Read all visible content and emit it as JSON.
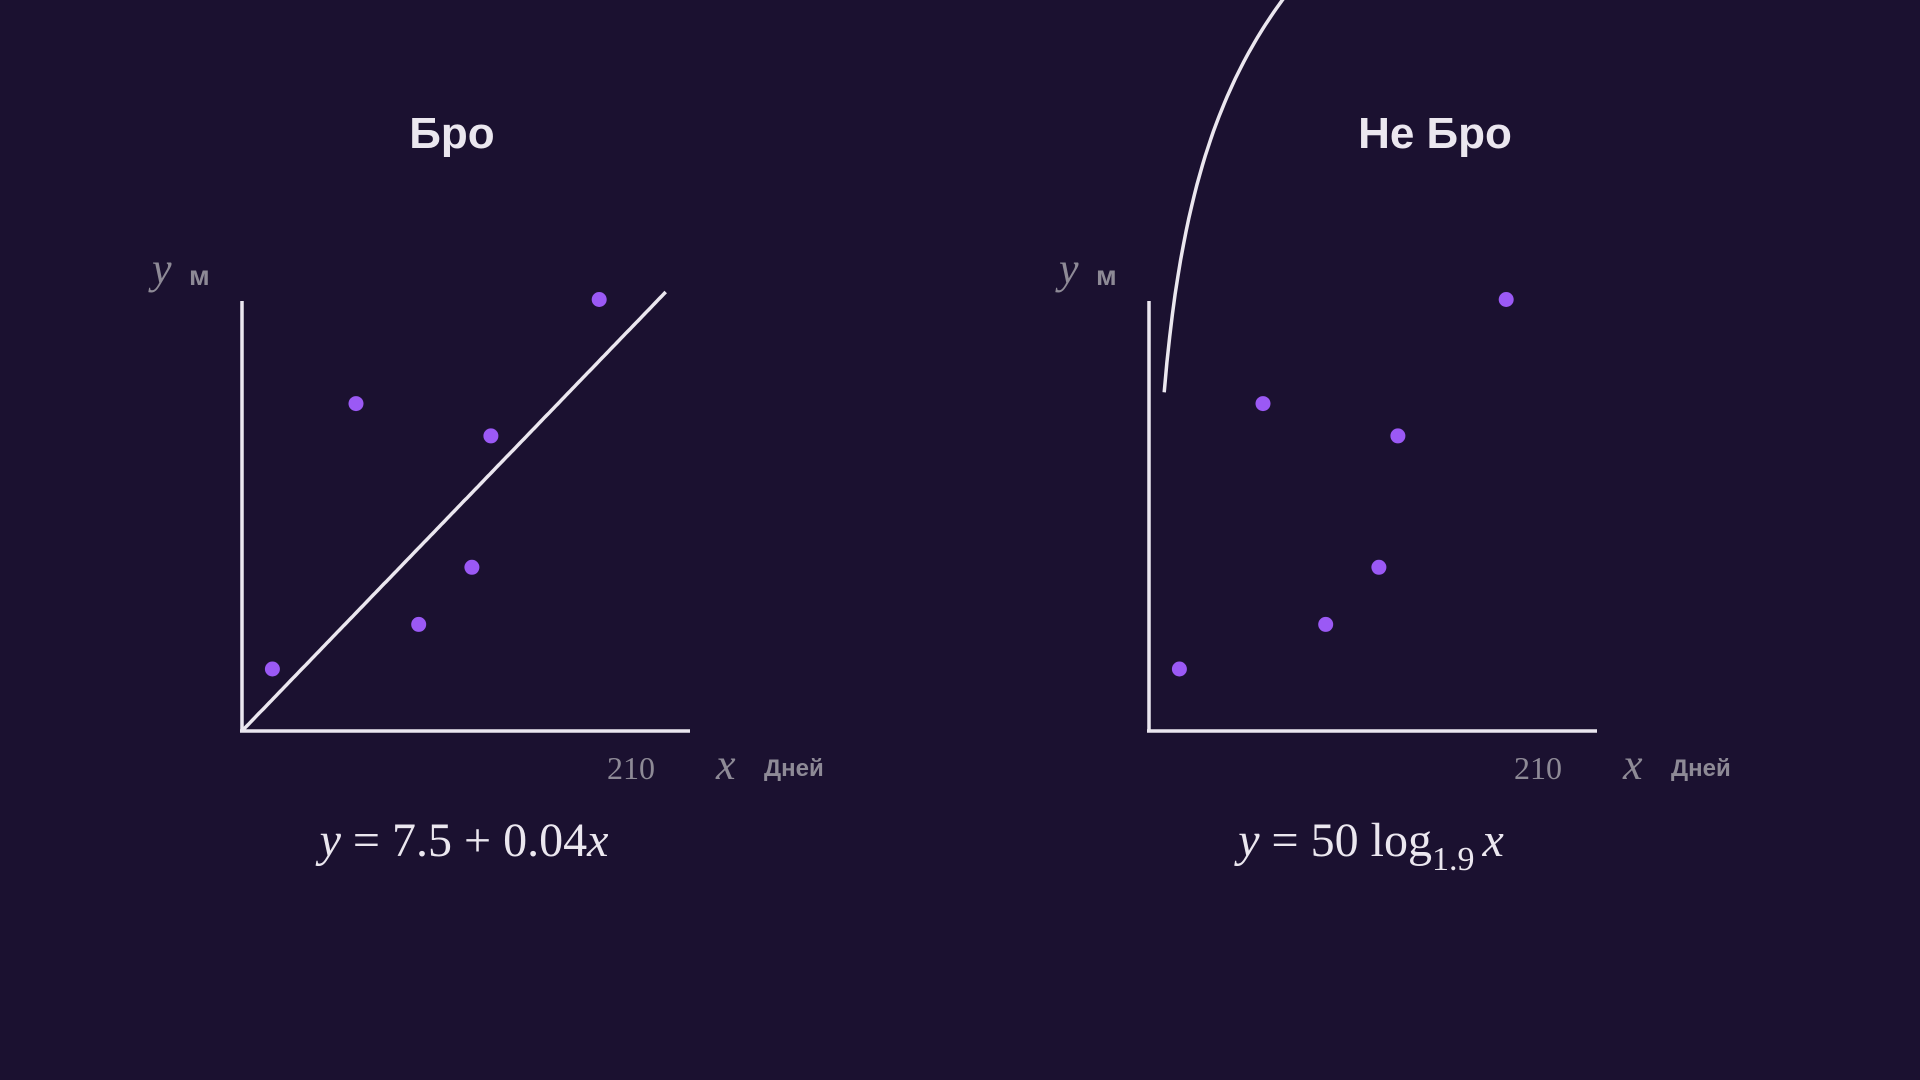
{
  "colors": {
    "background": "#1b1130",
    "axis": "#ebe7ef",
    "point": "#9b59f5",
    "label": "#8e8a96",
    "title": "#ebe7ef"
  },
  "chart_data": [
    {
      "type": "scatter",
      "title": "Бро",
      "xlabel": "x",
      "x_unit": "Дней",
      "ylabel": "y",
      "y_unit": "м",
      "xlim": [
        0,
        216
      ],
      "ylim": [
        0,
        17.2
      ],
      "x_ticks": [
        {
          "value": 210,
          "label": "210"
        }
      ],
      "points": [
        {
          "x": 16,
          "y": 2.5
        },
        {
          "x": 60,
          "y": 13.2
        },
        {
          "x": 93,
          "y": 4.3
        },
        {
          "x": 121,
          "y": 6.6
        },
        {
          "x": 131,
          "y": 11.9
        },
        {
          "x": 188,
          "y": 17.4
        }
      ],
      "fit": {
        "kind": "linear",
        "intercept": 7.5,
        "slope": 0.04,
        "domain": [
          0,
          223
        ]
      },
      "formula": {
        "parts": [
          "y",
          " = 7.5 + 0.04",
          "x"
        ]
      },
      "legend": "none",
      "grid": false
    },
    {
      "type": "scatter",
      "title": "Не Бро",
      "xlabel": "x",
      "x_unit": "Дней",
      "ylabel": "y",
      "y_unit": "м",
      "xlim": [
        0,
        216
      ],
      "ylim": [
        0,
        17.2
      ],
      "x_ticks": [
        {
          "value": 210,
          "label": "210"
        }
      ],
      "points": [
        {
          "x": 16,
          "y": 2.5
        },
        {
          "x": 60,
          "y": 13.2
        },
        {
          "x": 93,
          "y": 4.3
        },
        {
          "x": 121,
          "y": 6.6
        },
        {
          "x": 131,
          "y": 11.9
        },
        {
          "x": 188,
          "y": 17.4
        }
      ],
      "fit": {
        "kind": "log",
        "coef": 50,
        "base": 1.9,
        "domain": [
          8,
          296
        ]
      },
      "formula": {
        "parts": [
          "y",
          " = 50 log",
          "1.9",
          "x"
        ]
      },
      "legend": "none",
      "grid": false
    }
  ]
}
